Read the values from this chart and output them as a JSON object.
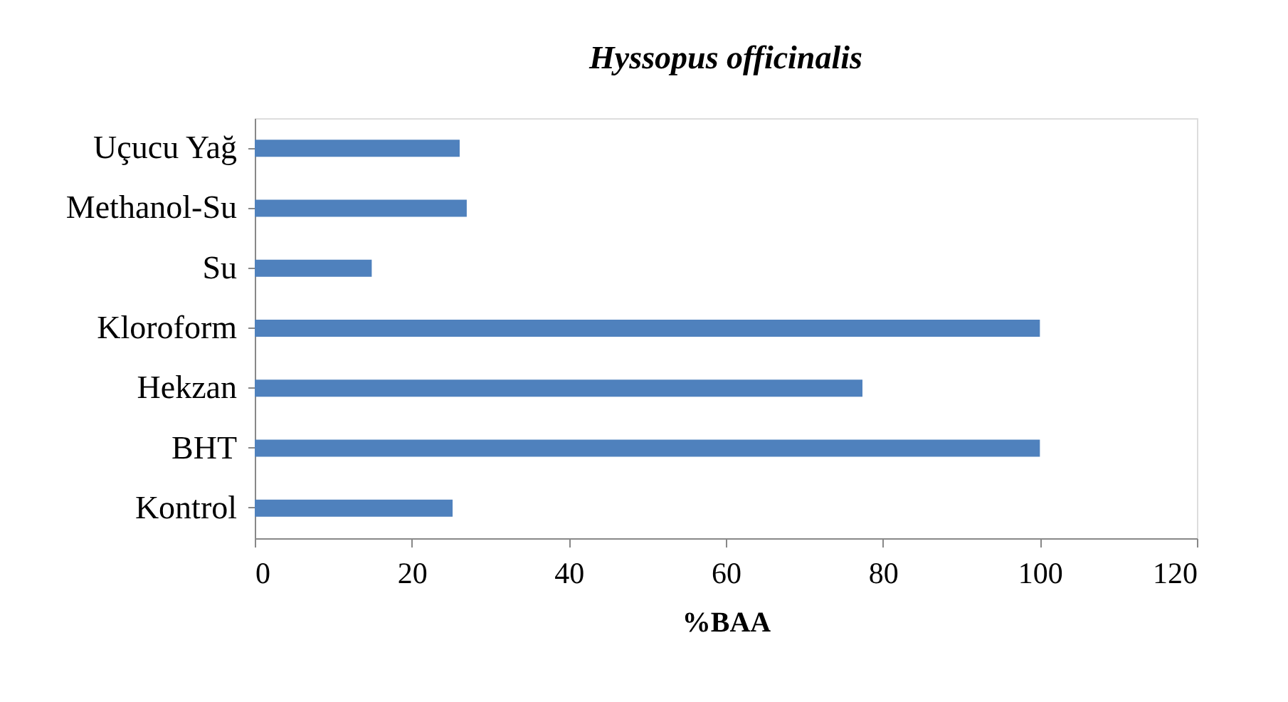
{
  "chart_data": {
    "type": "bar",
    "orientation": "horizontal",
    "title": "Hyssopus officinalis",
    "xlabel": "%BAA",
    "categories": [
      "Uçucu Yağ",
      "Methanol-Su",
      "Su",
      "Kloroform",
      "Hekzan",
      "BHT",
      "Kontrol"
    ],
    "values": [
      26.1,
      27.0,
      14.9,
      100,
      77.4,
      100,
      25.2
    ],
    "color": "#4f81bd",
    "xlim": [
      0,
      120
    ],
    "xticks": [
      0,
      20,
      40,
      60,
      80,
      100,
      120
    ],
    "grid": false
  }
}
